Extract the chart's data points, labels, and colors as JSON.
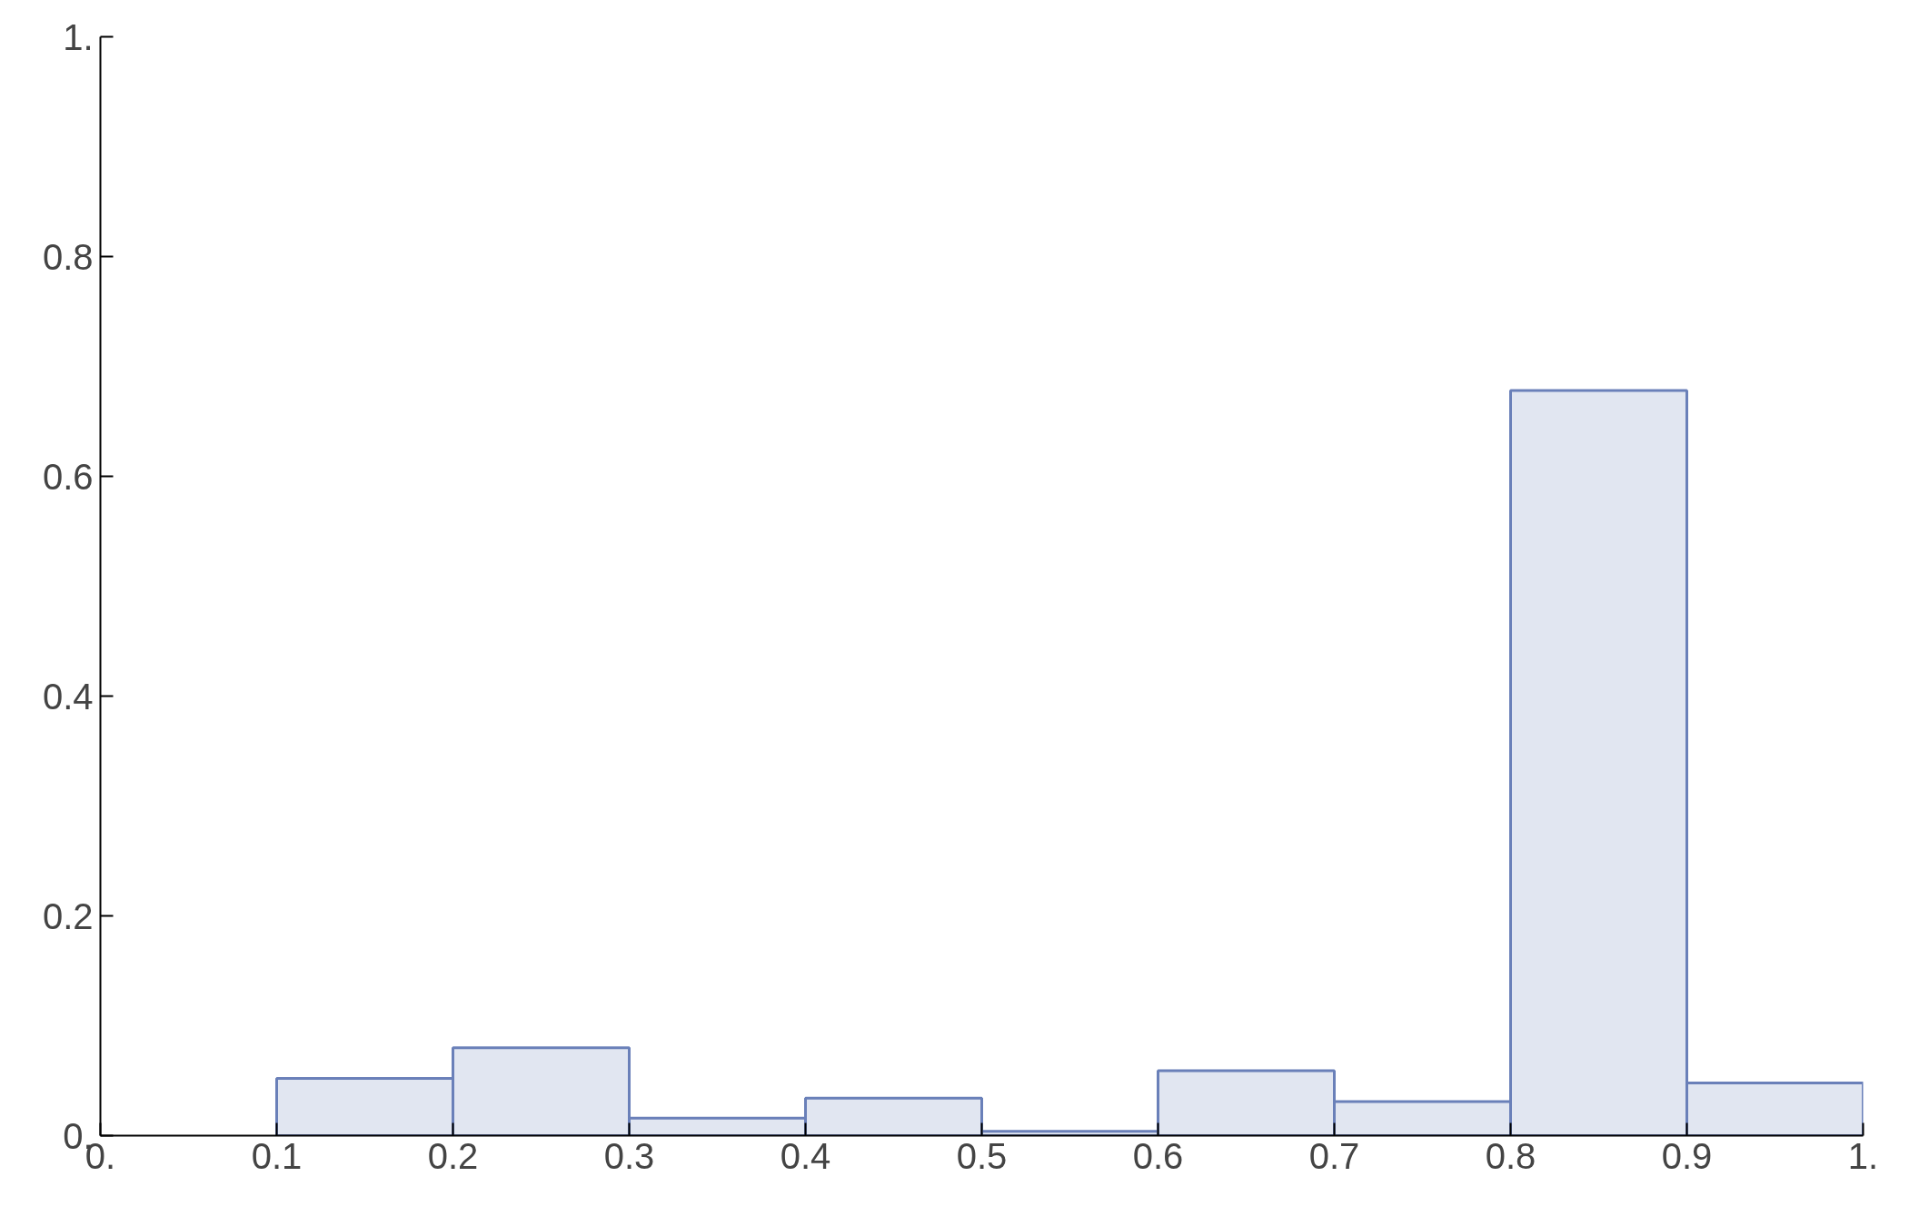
{
  "chart_data": {
    "type": "histogram",
    "bins": [
      0.1,
      0.2,
      0.3,
      0.4,
      0.5,
      0.6,
      0.7,
      0.8,
      0.9,
      1.0
    ],
    "values": [
      0.052,
      0.08,
      0.016,
      0.034,
      0.004,
      0.059,
      0.031,
      0.678,
      0.048
    ],
    "color": "#6a80b9",
    "xlim": [
      0,
      1.0
    ],
    "ylim": [
      0,
      1.0
    ],
    "xticks": [
      {
        "value": 0,
        "label": "0."
      },
      0.1,
      0.2,
      0.3,
      0.4,
      0.5,
      0.6,
      0.7,
      0.8,
      0.9,
      {
        "value": 1.0,
        "label": "1."
      }
    ],
    "yticks": [
      {
        "value": 0,
        "label": "0."
      },
      0.2,
      0.4,
      0.6,
      0.8,
      {
        "value": 1.0,
        "label": "1."
      }
    ],
    "grid": false
  }
}
